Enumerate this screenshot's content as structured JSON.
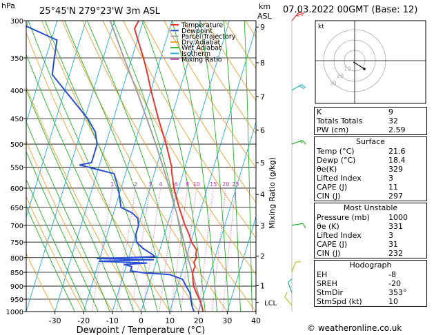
{
  "header": {
    "pressure_unit": "hPa",
    "location": "25°45'N  279°23'W  3m  ASL",
    "km_unit": "km",
    "asl_unit": "ASL",
    "datetime": "07.03.2022  00GMT  (Base: 12)"
  },
  "chart_data": {
    "type": "line",
    "xlabel": "Dewpoint / Temperature (°C)",
    "y2label": "Mixing Ratio (g/kg)",
    "x_ticks": [
      -30,
      -20,
      -10,
      0,
      10,
      20,
      30,
      40
    ],
    "p_ticks": [
      300,
      350,
      400,
      450,
      500,
      550,
      600,
      650,
      700,
      750,
      800,
      850,
      900,
      950,
      1000
    ],
    "km_ticks": [
      {
        "km": "1",
        "p": 898
      },
      {
        "km": "2",
        "p": 795
      },
      {
        "km": "3",
        "p": 701
      },
      {
        "km": "4",
        "p": 616
      },
      {
        "km": "5",
        "p": 540
      },
      {
        "km": "6",
        "p": 472
      },
      {
        "km": "7",
        "p": 411
      },
      {
        "km": "8",
        "p": 357
      },
      {
        "km": "9",
        "p": 308
      }
    ],
    "lcl": {
      "label": "LCL",
      "p": 963
    },
    "mixing_ratio_labels": [
      "1",
      "2",
      "3",
      "4",
      "6",
      "8",
      "10",
      "15",
      "20",
      "25"
    ],
    "mixing_ratio_values": [
      1,
      2,
      3,
      4,
      6,
      8,
      10,
      15,
      20,
      25
    ],
    "legend": [
      {
        "name": "Temperature",
        "color": "#e8342a"
      },
      {
        "name": "Dewpoint",
        "color": "#2a4fd6"
      },
      {
        "name": "Parcel Trajectory",
        "color": "#a0a0a0"
      },
      {
        "name": "Dry Adiabat",
        "color": "#e8a030"
      },
      {
        "name": "Wet Adiabat",
        "color": "#20b020"
      },
      {
        "name": "Isotherm",
        "color": "#20a8e8"
      },
      {
        "name": "Mixing Ratio",
        "color": "#d040c0"
      }
    ],
    "temperature": [
      [
        1000,
        21.6
      ],
      [
        975,
        20.4
      ],
      [
        950,
        19.0
      ],
      [
        925,
        17.2
      ],
      [
        900,
        15.6
      ],
      [
        875,
        14.6
      ],
      [
        850,
        13.8
      ],
      [
        830,
        14.0
      ],
      [
        815,
        13.2
      ],
      [
        800,
        13.6
      ],
      [
        790,
        13.0
      ],
      [
        775,
        12.8
      ],
      [
        750,
        10.2
      ],
      [
        725,
        8.4
      ],
      [
        700,
        6.2
      ],
      [
        650,
        2.2
      ],
      [
        600,
        -1.6
      ],
      [
        560,
        -4.2
      ],
      [
        550,
        -4.6
      ],
      [
        500,
        -9.0
      ],
      [
        450,
        -14.4
      ],
      [
        400,
        -20.0
      ],
      [
        375,
        -22.8
      ],
      [
        350,
        -26.0
      ],
      [
        325,
        -29.8
      ],
      [
        310,
        -32.2
      ],
      [
        300,
        -31.6
      ]
    ],
    "dewpoint": [
      [
        1000,
        18.4
      ],
      [
        975,
        17.0
      ],
      [
        950,
        16.0
      ],
      [
        925,
        15.0
      ],
      [
        900,
        13.0
      ],
      [
        875,
        11.0
      ],
      [
        858,
        6.0
      ],
      [
        852,
        -3.0
      ],
      [
        845,
        -8.0
      ],
      [
        830,
        -8.0
      ],
      [
        823,
        -11.0
      ],
      [
        818,
        -3.0
      ],
      [
        812,
        -20.0
      ],
      [
        807,
        -1.0
      ],
      [
        803,
        -21.0
      ],
      [
        797,
        -1.0
      ],
      [
        790,
        -2.0
      ],
      [
        770,
        -6.0
      ],
      [
        750,
        -9.0
      ],
      [
        725,
        -10.0
      ],
      [
        700,
        -10.0
      ],
      [
        680,
        -11.0
      ],
      [
        665,
        -13.5
      ],
      [
        650,
        -18.0
      ],
      [
        600,
        -21.0
      ],
      [
        565,
        -24.0
      ],
      [
        545,
        -37.0
      ],
      [
        540,
        -33.0
      ],
      [
        500,
        -33.0
      ],
      [
        475,
        -35.0
      ],
      [
        450,
        -39.0
      ],
      [
        400,
        -50.0
      ],
      [
        375,
        -56.0
      ],
      [
        350,
        -57.0
      ],
      [
        325,
        -58.0
      ],
      [
        300,
        -75.0
      ]
    ],
    "parcel": [
      [
        1000,
        21.6
      ],
      [
        963,
        19.8
      ],
      [
        900,
        16.4
      ],
      [
        850,
        13.6
      ],
      [
        800,
        10.6
      ],
      [
        750,
        7.6
      ],
      [
        700,
        4.4
      ],
      [
        650,
        0.8
      ],
      [
        600,
        -3.2
      ],
      [
        550,
        -7.6
      ],
      [
        500,
        -12.6
      ],
      [
        450,
        -18.4
      ],
      [
        400,
        -25.0
      ],
      [
        350,
        -32.8
      ],
      [
        300,
        -41.5
      ]
    ],
    "ylim": [
      1000,
      300
    ],
    "xlim": [
      -40,
      40
    ]
  },
  "wind_barbs": [
    {
      "p": 300,
      "color": "#e83030",
      "dir": 220,
      "spd": 25
    },
    {
      "p": 400,
      "color": "#20b0c0",
      "dir": 240,
      "spd": 20
    },
    {
      "p": 500,
      "color": "#20b020",
      "dir": 250,
      "spd": 15
    },
    {
      "p": 700,
      "color": "#20b020",
      "dir": 260,
      "spd": 10
    },
    {
      "p": 850,
      "color": "#c0c020",
      "dir": 200,
      "spd": 10
    },
    {
      "p": 925,
      "color": "#20b0a0",
      "dir": 160,
      "spd": 10
    },
    {
      "p": 975,
      "color": "#c0c020",
      "dir": 140,
      "spd": 10
    }
  ],
  "hodograph": {
    "label": "kt",
    "ring_labels": [
      "10",
      "20",
      "30"
    ]
  },
  "indices": [
    {
      "k": "K",
      "v": "9"
    },
    {
      "k": "Totals Totals",
      "v": "32"
    },
    {
      "k": "PW (cm)",
      "v": "2.59"
    }
  ],
  "surface": {
    "title": "Surface",
    "rows": [
      {
        "k": "Temp (°C)",
        "v": "21.6"
      },
      {
        "k": "Dewp (°C)",
        "v": "18.4"
      },
      {
        "k": "θe(K)",
        "v": "329"
      },
      {
        "k": "Lifted Index",
        "v": "3"
      },
      {
        "k": "CAPE (J)",
        "v": "11"
      },
      {
        "k": "CIN (J)",
        "v": "297"
      }
    ]
  },
  "most_unstable": {
    "title": "Most Unstable",
    "rows": [
      {
        "k": "Pressure (mb)",
        "v": "1000"
      },
      {
        "k": "θe (K)",
        "v": "331"
      },
      {
        "k": "Lifted Index",
        "v": "3"
      },
      {
        "k": "CAPE (J)",
        "v": "31"
      },
      {
        "k": "CIN (J)",
        "v": "232"
      }
    ]
  },
  "hodograph_table": {
    "title": "Hodograph",
    "rows": [
      {
        "k": "EH",
        "v": "-8"
      },
      {
        "k": "SREH",
        "v": "-20"
      },
      {
        "k": "StmDir",
        "v": "353°"
      },
      {
        "k": "StmSpd (kt)",
        "v": "10"
      }
    ]
  },
  "footer": "© weatheronline.co.uk"
}
